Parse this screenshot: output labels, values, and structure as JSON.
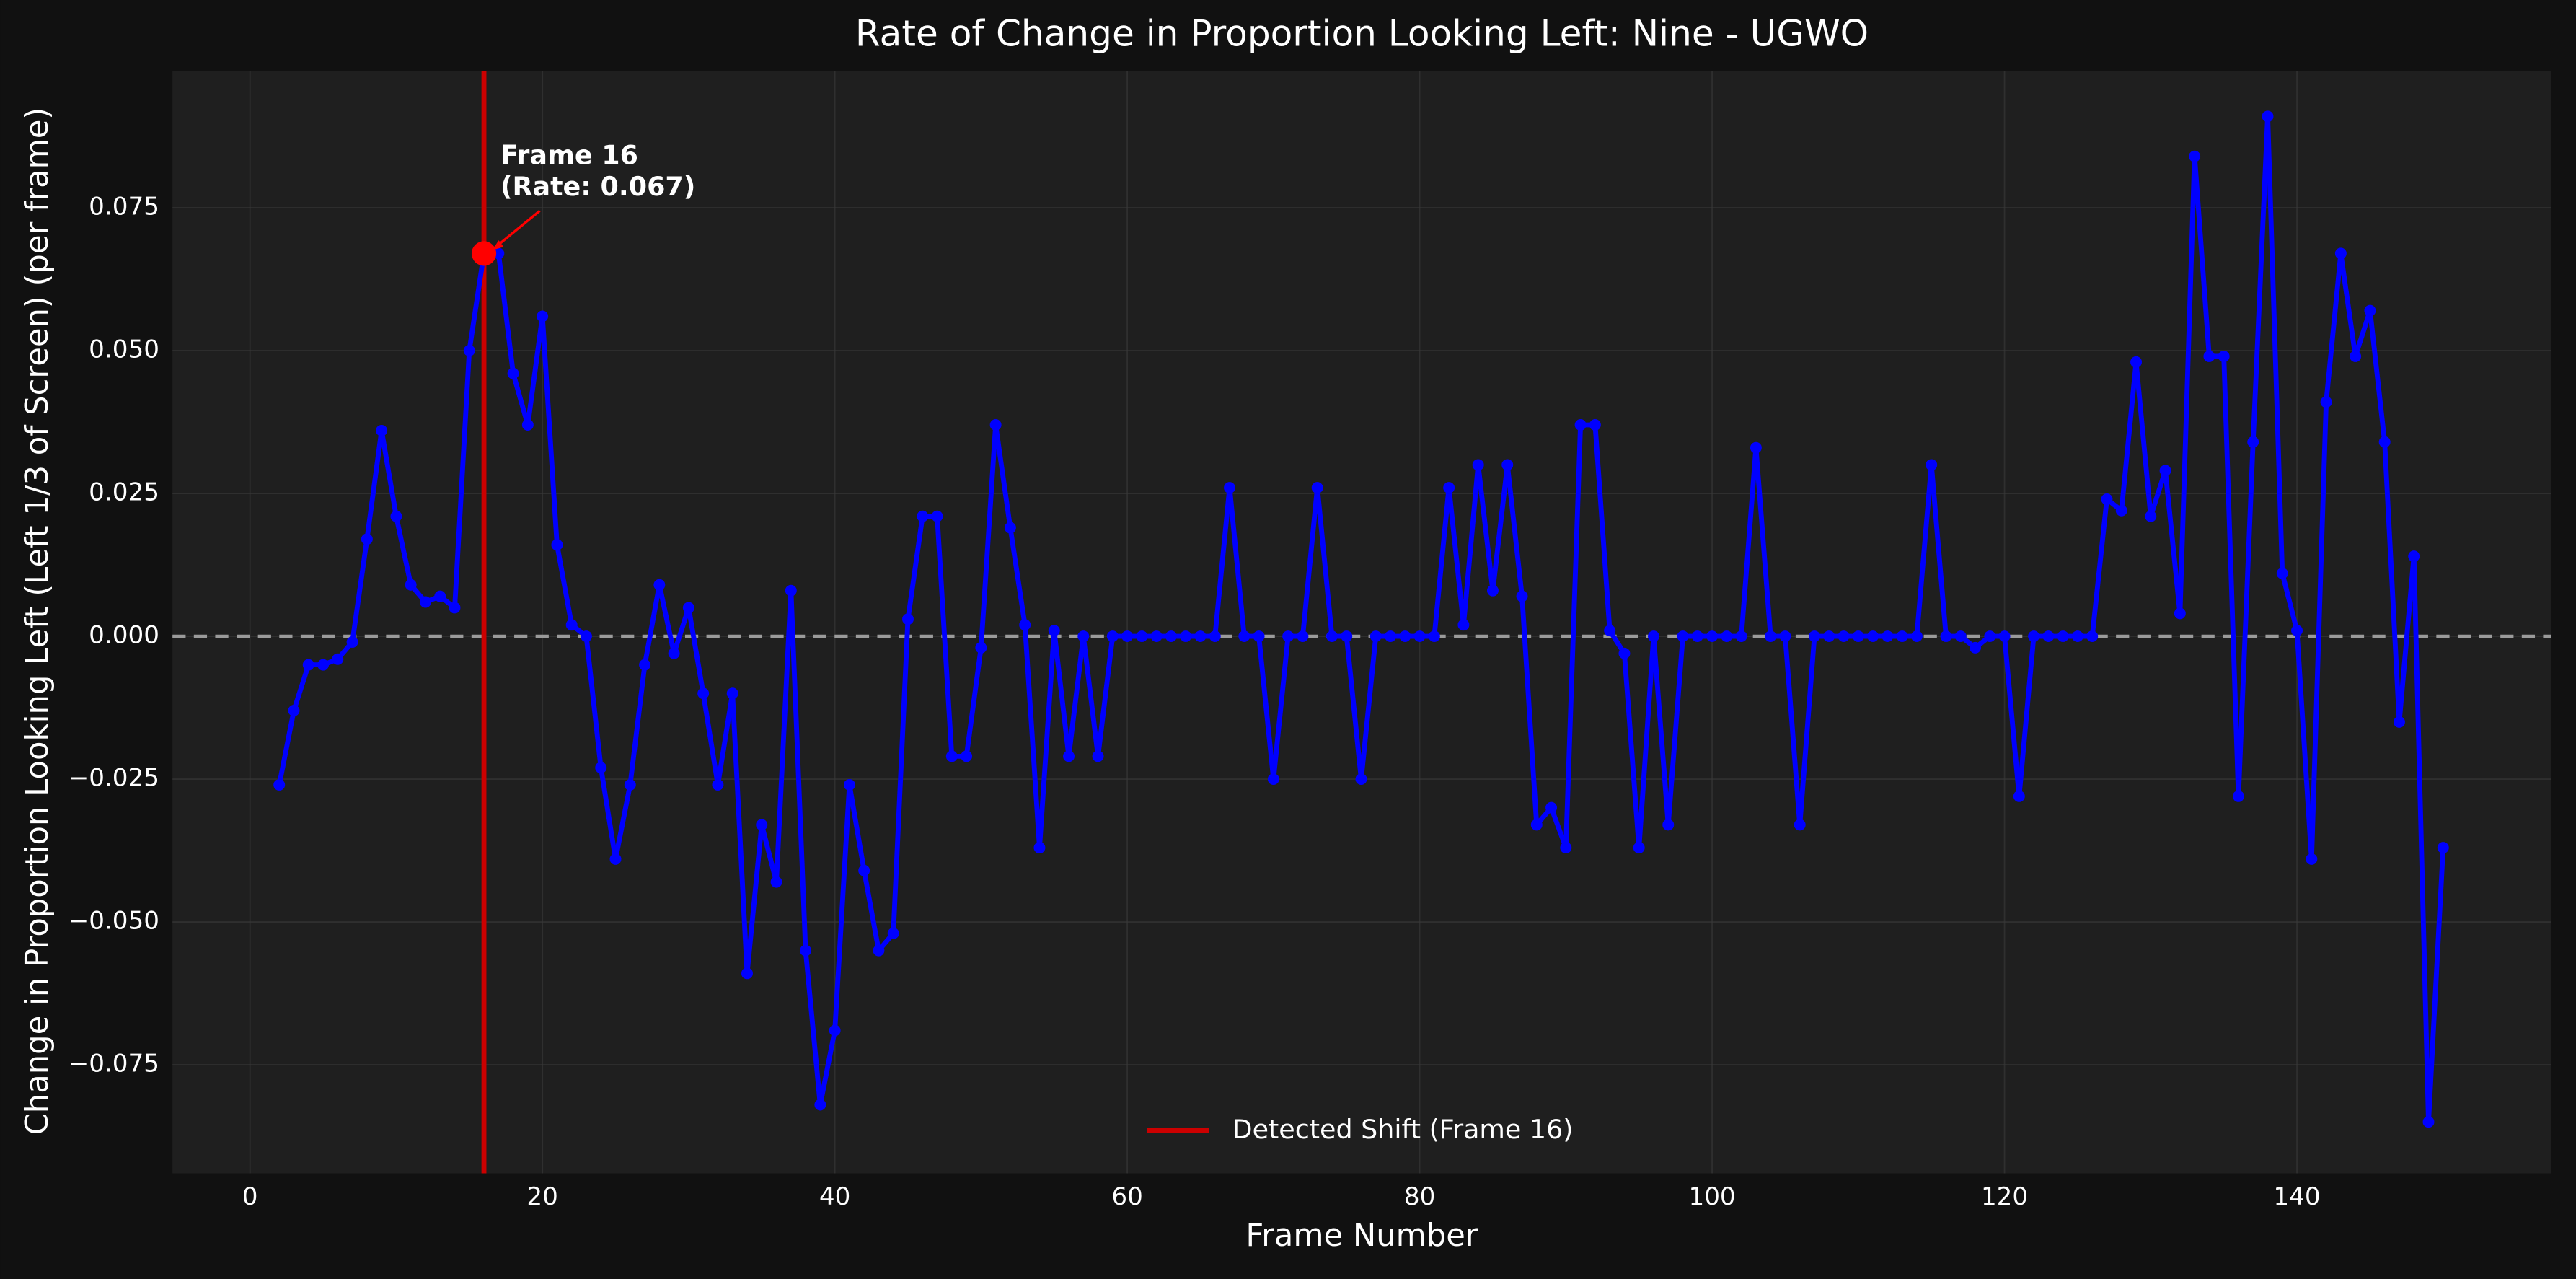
{
  "chart_data": {
    "type": "line",
    "title": "Rate of Change in Proportion Looking Left: Nine - UGWO",
    "x_label": "Frame Number",
    "y_label": "Change in Proportion Looking Left (Left 1/3 of Screen) (per frame)",
    "x": [
      2,
      3,
      4,
      5,
      6,
      7,
      8,
      9,
      10,
      11,
      12,
      13,
      14,
      15,
      16,
      17,
      18,
      19,
      20,
      21,
      22,
      23,
      24,
      25,
      26,
      27,
      28,
      29,
      30,
      31,
      32,
      33,
      34,
      35,
      36,
      37,
      38,
      39,
      40,
      41,
      42,
      43,
      44,
      45,
      46,
      47,
      48,
      49,
      50,
      51,
      52,
      53,
      54,
      55,
      56,
      57,
      58,
      59,
      60,
      61,
      62,
      63,
      64,
      65,
      66,
      67,
      68,
      69,
      70,
      71,
      72,
      73,
      74,
      75,
      76,
      77,
      78,
      79,
      80,
      81,
      82,
      83,
      84,
      85,
      86,
      87,
      88,
      89,
      90,
      91,
      92,
      93,
      94,
      95,
      96,
      97,
      98,
      99,
      100,
      101,
      102,
      103,
      104,
      105,
      106,
      107,
      108,
      109,
      110,
      111,
      112,
      113,
      114,
      115,
      116,
      117,
      118,
      119,
      120,
      121,
      122,
      123,
      124,
      125,
      126,
      127,
      128,
      129,
      130,
      131,
      132,
      133,
      134,
      135,
      136,
      137,
      138,
      139,
      140,
      141,
      142,
      143,
      144,
      145,
      146,
      147,
      148,
      149,
      150
    ],
    "series": [
      {
        "color": "#0000ff",
        "values": [
          -0.026,
          -0.013,
          -0.005,
          -0.005,
          -0.004,
          -0.001,
          0.017,
          0.036,
          0.021,
          0.009,
          0.006,
          0.007,
          0.005,
          0.05,
          0.067,
          0.067,
          0.046,
          0.037,
          0.056,
          0.016,
          0.002,
          0.0,
          -0.023,
          -0.039,
          -0.026,
          -0.005,
          0.009,
          -0.003,
          0.005,
          -0.01,
          -0.026,
          -0.01,
          -0.059,
          -0.033,
          -0.043,
          0.008,
          -0.055,
          -0.082,
          -0.069,
          -0.026,
          -0.041,
          -0.055,
          -0.052,
          0.003,
          0.021,
          0.021,
          -0.021,
          -0.021,
          -0.002,
          0.037,
          0.019,
          0.002,
          -0.037,
          0.001,
          -0.021,
          0.0,
          -0.021,
          0.0,
          0,
          0,
          0,
          0,
          0,
          0,
          0,
          0.026,
          0,
          0,
          -0.025,
          0,
          0,
          0.026,
          0,
          0,
          -0.025,
          0,
          0,
          0,
          0,
          0,
          0.026,
          0.002,
          0.03,
          0.008,
          0.03,
          0.007,
          -0.033,
          -0.03,
          -0.037,
          0.037,
          0.037,
          0.001,
          -0.003,
          -0.037,
          0,
          -0.033,
          0,
          0,
          0,
          0,
          0,
          0.033,
          0,
          0,
          -0.033,
          0,
          0,
          0,
          0,
          0,
          0,
          0,
          0,
          0.03,
          0,
          0,
          -0.002,
          0,
          0,
          -0.028,
          0,
          0,
          0,
          0,
          0,
          0.024,
          0.022,
          0.048,
          0.021,
          0.029,
          0.004,
          0.084,
          0.049,
          0.049,
          -0.028,
          0.034,
          0.091,
          0.011,
          0.001,
          -0.039,
          0.041,
          0.067,
          0.049,
          0.057,
          0.034,
          -0.015,
          0.014,
          -0.085,
          -0.037
        ]
      }
    ],
    "xlim": [
      -5.3,
      157.4
    ],
    "ylim": [
      -0.094,
      0.099
    ],
    "xticks": [
      0,
      20,
      40,
      60,
      80,
      100,
      120,
      140
    ],
    "yticks": [
      {
        "value": -0.075,
        "label": "−0.075"
      },
      {
        "value": -0.05,
        "label": "−0.050"
      },
      {
        "value": -0.025,
        "label": "−0.025"
      },
      {
        "value": 0,
        "label": "0.000"
      },
      {
        "value": 0.025,
        "label": "0.025"
      },
      {
        "value": 0.05,
        "label": "0.050"
      },
      {
        "value": 0.075,
        "label": "0.075"
      }
    ],
    "grid": true,
    "hline": 0,
    "vline": {
      "x": 16,
      "color": "#cc0000",
      "label": "Detected Shift (Frame 16)"
    },
    "annotation": {
      "x": 16,
      "y": 0.067,
      "color": "#ff0000",
      "text": [
        "Frame 16",
        "(Rate: 0.067)"
      ]
    },
    "legend": "lower center"
  }
}
